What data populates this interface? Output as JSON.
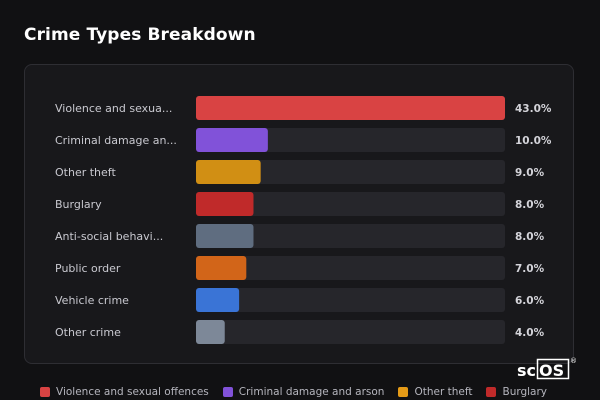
{
  "title": "Crime Types Breakdown",
  "chart_data": {
    "type": "bar",
    "orientation": "horizontal",
    "title": "Crime Types Breakdown",
    "xlabel": "",
    "ylabel": "",
    "xlim": [
      0,
      43
    ],
    "grid": false,
    "value_suffix": "%",
    "categories": [
      "Violence and sexua...",
      "Criminal damage an...",
      "Other theft",
      "Burglary",
      "Anti-social behavi...",
      "Public order",
      "Vehicle crime",
      "Other crime"
    ],
    "values": [
      43.0,
      10.0,
      9.0,
      8.0,
      8.0,
      7.0,
      6.0,
      4.0
    ],
    "value_labels": [
      "43.0%",
      "10.0%",
      "9.0%",
      "8.0%",
      "8.0%",
      "7.0%",
      "6.0%",
      "4.0%"
    ],
    "colors": [
      "#d94343",
      "#8152d9",
      "#d18f14",
      "#c02a2a",
      "#5f6d80",
      "#d26519",
      "#3a74d6",
      "#7d8898"
    ],
    "legend_position": "bottom",
    "legend": [
      {
        "label": "Violence and sexual offences",
        "color": "#d94343"
      },
      {
        "label": "Criminal damage and arson",
        "color": "#8152d9"
      },
      {
        "label": "Other theft",
        "color": "#e59b17"
      },
      {
        "label": "Burglary",
        "color": "#c02a2a"
      }
    ]
  },
  "logo": {
    "text": "scOS",
    "mark": "®"
  }
}
